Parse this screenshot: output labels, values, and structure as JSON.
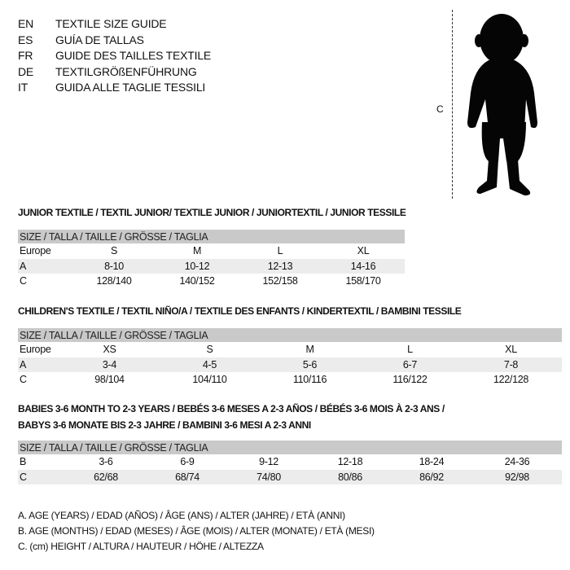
{
  "languages": [
    {
      "code": "EN",
      "title": "TEXTILE SIZE GUIDE"
    },
    {
      "code": "ES",
      "title": "GUÍA DE TALLAS"
    },
    {
      "code": "FR",
      "title": "GUIDE DES TAILLES TEXTILE"
    },
    {
      "code": "DE",
      "title": "TEXTILGRÖßENFÜHRUNG"
    },
    {
      "code": "IT",
      "title": "GUIDA ALLE TAGLIE TESSILI"
    }
  ],
  "figure": {
    "measure_label": "C",
    "icon": "baby-silhouette"
  },
  "size_header": "SIZE / TALLA / TAILLE / GRÖSSE / TAGLIA",
  "junior": {
    "heading": "JUNIOR TEXTILE / TEXTIL JUNIOR/ TEXTILE JUNIOR / JUNIORTEXTIL / JUNIOR TESSILE",
    "rows": [
      {
        "label": "Europe",
        "values": [
          "S",
          "M",
          "L",
          "XL"
        ]
      },
      {
        "label": "A",
        "values": [
          "8-10",
          "10-12",
          "12-13",
          "14-16"
        ]
      },
      {
        "label": "C",
        "values": [
          "128/140",
          "140/152",
          "152/158",
          "158/170"
        ]
      }
    ]
  },
  "children": {
    "heading": "CHILDREN'S TEXTILE / TEXTIL NIÑO/A / TEXTILE DES ENFANTS / KINDERTEXTIL / BAMBINI TESSILE",
    "rows": [
      {
        "label": "Europe",
        "values": [
          "XS",
          "S",
          "M",
          "L",
          "XL"
        ]
      },
      {
        "label": "A",
        "values": [
          "3-4",
          "4-5",
          "5-6",
          "6-7",
          "7-8"
        ]
      },
      {
        "label": "C",
        "values": [
          "98/104",
          "104/110",
          "110/116",
          "116/122",
          "122/128"
        ]
      }
    ]
  },
  "babies": {
    "heading_line1": "BABIES 3-6 MONTH TO 2-3 YEARS / BEBÉS 3-6 MESES A 2-3 AÑOS / BÉBÉS 3-6 MOIS À 2-3 ANS /",
    "heading_line2": "BABYS 3-6 MONATE BIS 2-3 JAHRE / BAMBINI 3-6 MESI A 2-3 ANNI",
    "rows": [
      {
        "label": "B",
        "values": [
          "3-6",
          "6-9",
          "9-12",
          "12-18",
          "18-24",
          "24-36"
        ]
      },
      {
        "label": "C",
        "values": [
          "62/68",
          "68/74",
          "74/80",
          "80/86",
          "86/92",
          "92/98"
        ]
      }
    ]
  },
  "legend": [
    "A. AGE (YEARS) / EDAD (AÑOS) / ÂGE (ANS) / ALTER (JAHRE) / ETÀ (ANNI)",
    "B. AGE (MONTHS) / EDAD (MESES) / ÂGE (MOIS) / ALTER (MONATE) / ETÀ (MESI)",
    "C. (cm) HEIGHT / ALTURA / HAUTEUR / HÖHE / ALTEZZA"
  ]
}
